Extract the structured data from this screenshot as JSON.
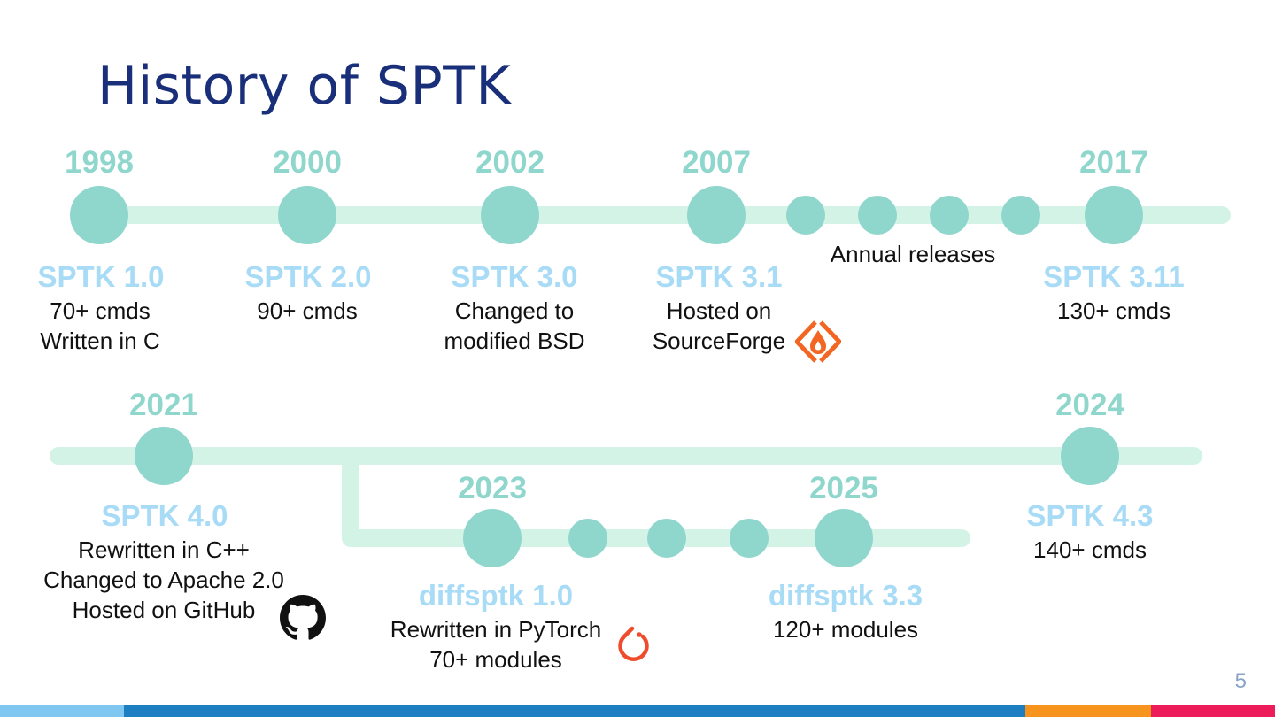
{
  "slide": {
    "title": "History of SPTK",
    "page_number": "5",
    "annual_releases": "Annual releases"
  },
  "milestones": [
    {
      "year": "1998",
      "version": "SPTK 1.0",
      "lines": [
        "70+ cmds",
        "Written in C"
      ]
    },
    {
      "year": "2000",
      "version": "SPTK 2.0",
      "lines": [
        "90+ cmds"
      ]
    },
    {
      "year": "2002",
      "version": "SPTK 3.0",
      "lines": [
        "Changed to",
        "modified BSD"
      ]
    },
    {
      "year": "2007",
      "version": "SPTK 3.1",
      "lines": [
        "Hosted on",
        "SourceForge"
      ]
    },
    {
      "year": "2017",
      "version": "SPTK 3.11",
      "lines": [
        "130+ cmds"
      ]
    },
    {
      "year": "2021",
      "version": "SPTK 4.0",
      "lines": [
        "Rewritten in C++",
        "Changed to Apache 2.0",
        "Hosted on GitHub"
      ]
    },
    {
      "year": "2024",
      "version": "SPTK 4.3",
      "lines": [
        "140+ cmds"
      ]
    },
    {
      "year": "2023",
      "version": "diffsptk 1.0",
      "lines": [
        "Rewritten in PyTorch",
        "70+ modules"
      ]
    },
    {
      "year": "2025",
      "version": "diffsptk 3.3",
      "lines": [
        "120+ modules"
      ]
    }
  ],
  "icons": [
    "sourceforge-icon",
    "github-icon",
    "pytorch-icon"
  ],
  "colors": {
    "title": "#1a2f7a",
    "track": "#d3f3e6",
    "node": "#8fd6cd",
    "year": "#8fd6cd",
    "version": "#a8dbf5",
    "sourceforge": "#f26522",
    "pytorch": "#ee4c2c",
    "github": "#111111",
    "footer_bars": [
      "#7fc6f0",
      "#1d7fc2",
      "#f7941d",
      "#ec1c5a"
    ]
  }
}
